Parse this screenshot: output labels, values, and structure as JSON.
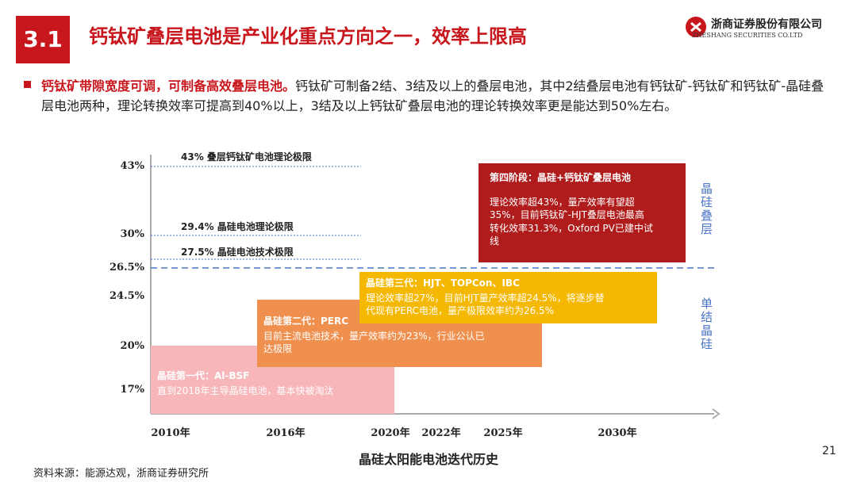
{
  "header": {
    "section": "3.1",
    "title": "钙钛矿叠层电池是产业化重点方向之一，效率上限高"
  },
  "logo": {
    "name": "浙商证券股份有限公司",
    "name_en": "ZHESHANG SECURITIES CO.LTD"
  },
  "bullet": {
    "lead": "钙钛矿带隙宽度可调，可制备高效叠层电池。",
    "text": "钙钛矿可制备2结、3结及以上的叠层电池，其中2结叠层电池有钙钛矿-钙钛矿和钙钛矿-晶硅叠层电池两种，理论转换效率可提高到40%以上，3结及以上钙钛矿叠层电池的理论转换效率更是能达到50%左右。"
  },
  "chart": {
    "y_labels": [
      "43%",
      "30%",
      "26.5%",
      "24.5%",
      "20%",
      "17%"
    ],
    "limits": [
      "43% 叠层钙钛矿电池理论极限",
      "29.4% 晶硅电池理论极限",
      "27.5% 晶硅电池技术极限"
    ],
    "x_labels": [
      "2010年",
      "2016年",
      "2020年",
      "2022年",
      "2025年",
      "2030年"
    ],
    "stages": [
      {
        "title": "晶硅第一代：Al-BSF",
        "lines": [
          "直到2018年主导晶硅电池，基本快被淘汰"
        ]
      },
      {
        "title": "晶硅第二代：PERC",
        "lines": [
          "目前主流电池技术，量产效率约为23%，行业公认已",
          "达极限"
        ]
      },
      {
        "title": "晶硅第三代：HJT、TOPCon、IBC",
        "lines": [
          "理论效率超27%，目前HJT量产效率超24.5%，将逐步替",
          "代现有PERC电池，量产极限效率约为26.5%"
        ]
      },
      {
        "title": "第四阶段：晶硅+钙钛矿叠层电池",
        "lines": [
          "理论效率超43%，量产效率有望超",
          "35%，目前钙钛矿-HJT叠层电池最高",
          "转化效率31.3%，Oxford PV已建中试",
          "线"
        ]
      }
    ],
    "side_labels": [
      "晶硅叠层",
      "单结晶硅"
    ],
    "caption": "晶硅太阳能电池迭代历史"
  },
  "footer": {
    "source": "资料来源：能源达观，浙商证券研究所",
    "page": "21"
  }
}
